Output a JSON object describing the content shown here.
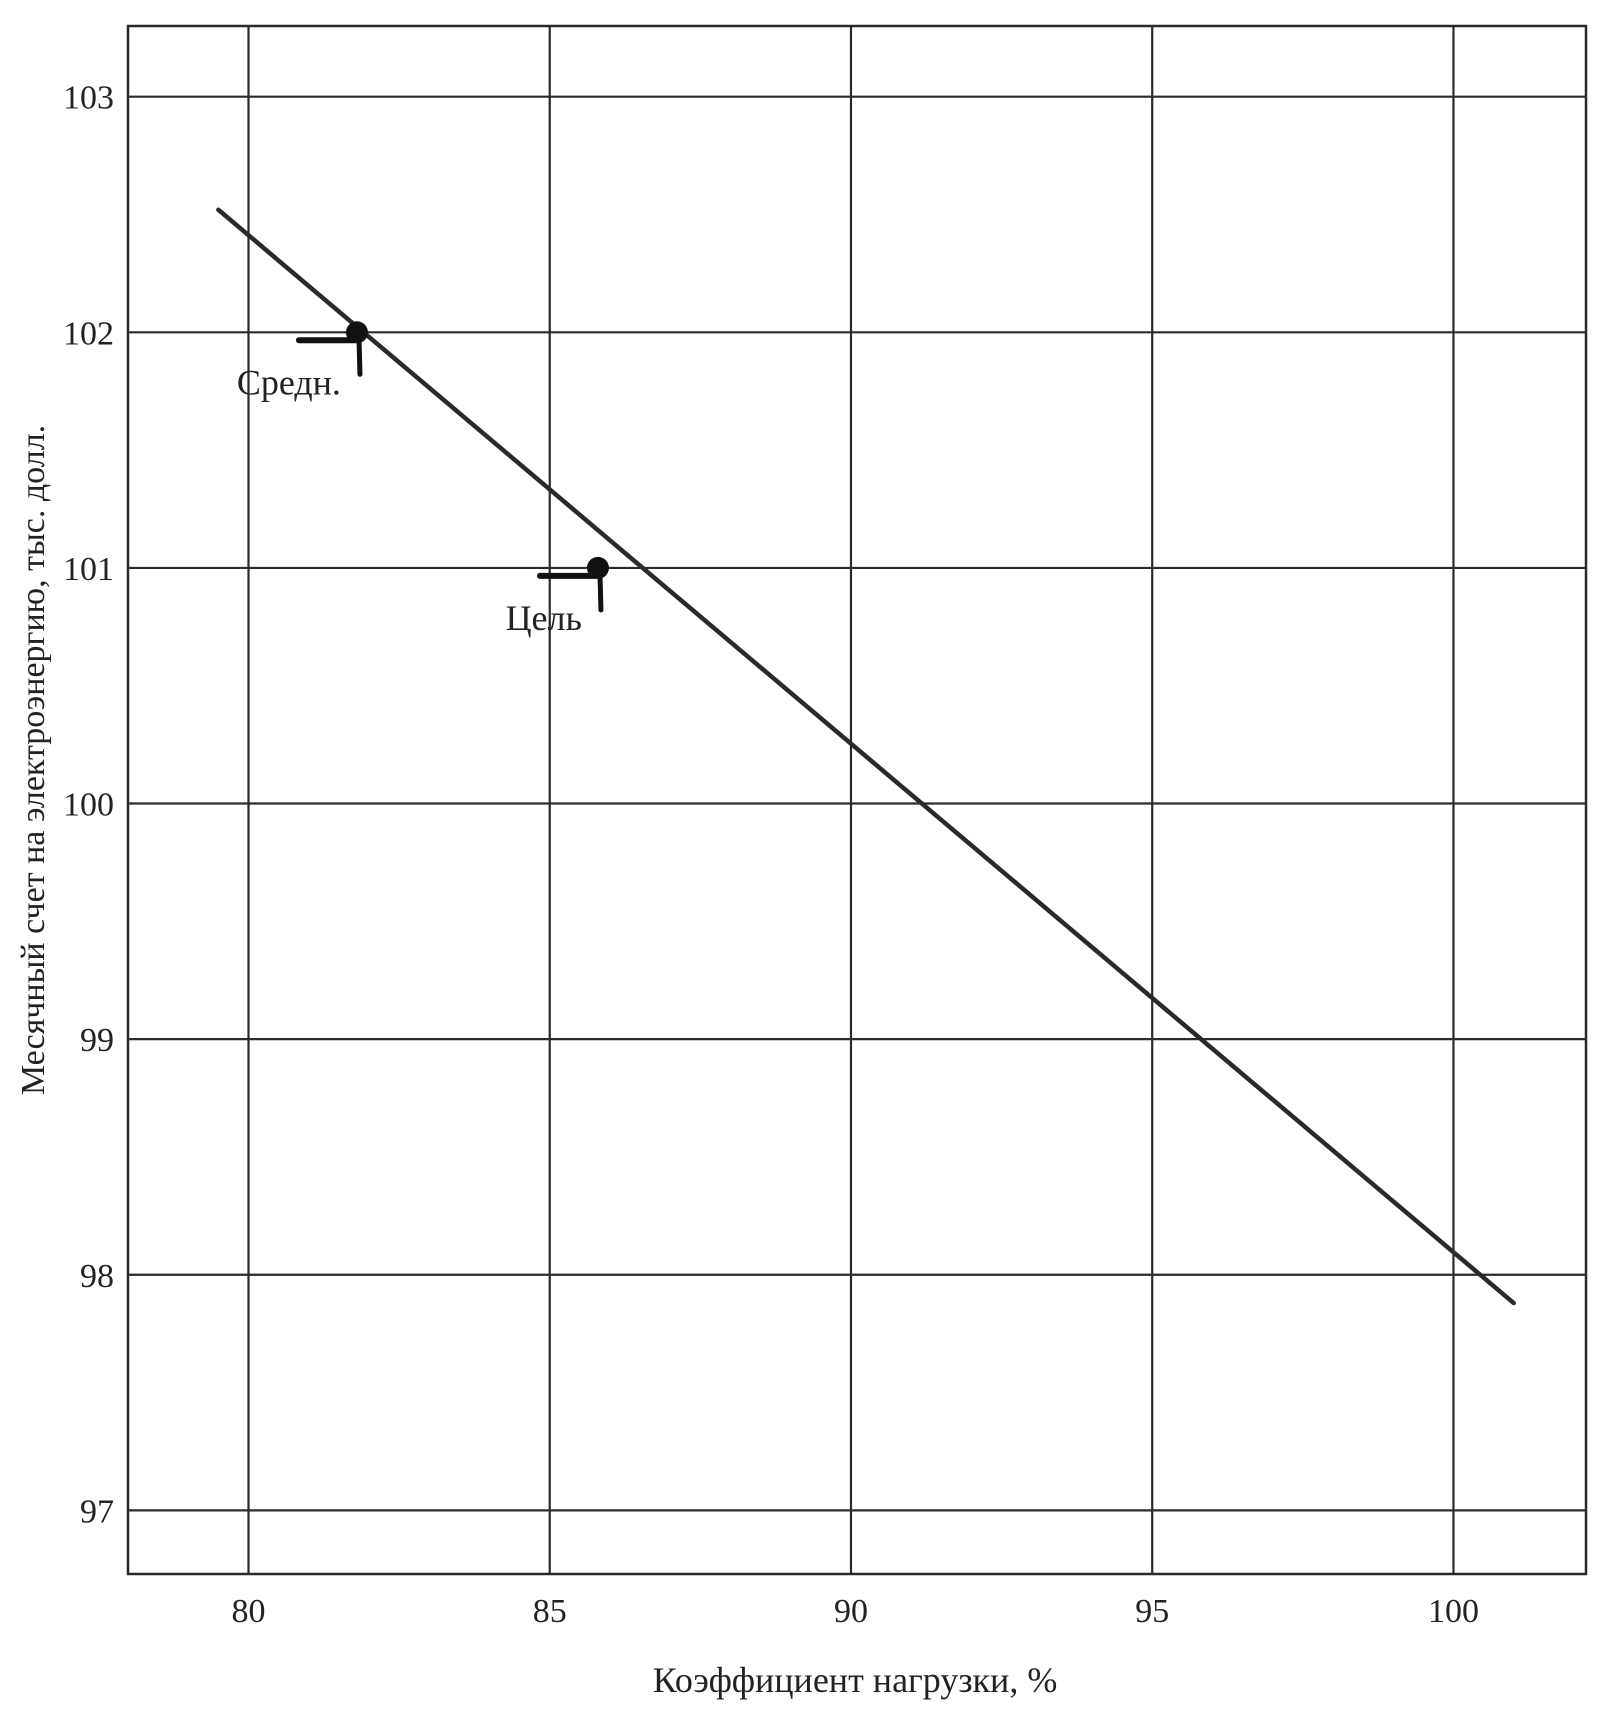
{
  "chart_data": {
    "type": "line",
    "title": "",
    "xlabel": "Коэффициент нагрузки, %",
    "ylabel": "Месячный счет на электроэнергию, тыс. долл.",
    "xlim": [
      78,
      102.2
    ],
    "ylim": [
      96.73,
      103.3
    ],
    "x_ticks": [
      80,
      85,
      90,
      95,
      100
    ],
    "y_ticks": [
      97,
      98,
      99,
      100,
      101,
      102,
      103
    ],
    "grid": true,
    "legend": "none",
    "series": [
      {
        "x": [
          79.5,
          101.0
        ],
        "y": [
          102.52,
          97.88
        ]
      }
    ],
    "annotations": [
      {
        "label": "Средн.",
        "x": 81.8,
        "y": 102.0
      },
      {
        "label": "Цель",
        "x": 85.8,
        "y": 101.0
      }
    ],
    "colors": {
      "line": "#2a2a2a",
      "grid": "#2a2a2a",
      "text": "#222222"
    }
  }
}
